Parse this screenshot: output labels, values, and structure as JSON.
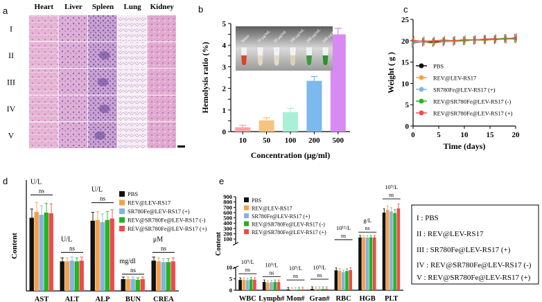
{
  "figure": {
    "panel_labels": {
      "a": "a",
      "b": "b",
      "c": "c",
      "d": "d",
      "e": "e"
    }
  },
  "panel_a": {
    "organs": [
      "Heart",
      "Liver",
      "Spleen",
      "Lung",
      "Kidney"
    ],
    "groups": [
      "I",
      "II",
      "III",
      "IV",
      "V"
    ]
  },
  "legend_box": {
    "items": [
      "I  : PBS",
      "II : REV@LEV-RS17",
      "III : SR780Fe@LEV-RS17 (+)",
      "IV : REV@SR780Fe@LEV-RS17  (-)",
      "V : REV@SR780Fe@LEV-RS17 (+)"
    ]
  },
  "colors": {
    "black": "#111111",
    "orange": "#F5A04A",
    "blue": "#84B3E0",
    "green": "#23B41F",
    "red": "#EE4A4A",
    "hemo": [
      "#F9A5A5",
      "#F7C37E",
      "#A9F0D8",
      "#7DB8EE",
      "#D98AF2"
    ]
  },
  "chart_data": [
    {
      "id": "hemolysis",
      "type": "bar",
      "categories": [
        "10",
        "50",
        "100",
        "200",
        "500"
      ],
      "values": [
        0.2,
        0.52,
        0.9,
        2.35,
        4.5
      ],
      "errors": [
        0.1,
        0.12,
        0.18,
        0.2,
        0.28
      ],
      "xlabel": "Concentration (μg/ml)",
      "ylabel": "Hemolysis ratio (%)",
      "ylim": [
        0,
        5
      ],
      "yticks": [
        "0",
        "0.5",
        "1",
        "1.5",
        "2",
        "2.5",
        "3",
        "3.5",
        "4",
        "4.5",
        "5"
      ],
      "inset_labels": [
        "Water",
        "10 μg/mL",
        "50 μg/mL",
        "100 μg/mL",
        "200 μg/mL",
        "500 μg/mL"
      ]
    },
    {
      "id": "weight",
      "type": "line",
      "x": [
        0,
        2,
        4,
        6,
        8,
        10,
        12,
        14,
        16,
        18,
        20
      ],
      "xlabel": "Time (days)",
      "ylabel": "Weight ( g )",
      "xlim": [
        0,
        20
      ],
      "ylim": [
        0,
        25
      ],
      "xticks": [
        "0",
        "5",
        "10",
        "15",
        "20"
      ],
      "yticks": [
        "0",
        "5",
        "10",
        "15",
        "20",
        "25"
      ],
      "series": [
        {
          "name": "PBS",
          "values": [
            19.5,
            19.7,
            19.6,
            19.8,
            19.9,
            20.0,
            20.1,
            20.3,
            20.2,
            20.5,
            20.6
          ]
        },
        {
          "name": "REV@LEV-RS17",
          "values": [
            19.8,
            19.6,
            19.4,
            19.7,
            19.8,
            19.9,
            20.1,
            20.0,
            20.3,
            20.4,
            20.3
          ]
        },
        {
          "name": "SR780Fe@LEV-RS17 (+)",
          "values": [
            19.6,
            19.7,
            19.9,
            19.8,
            20.0,
            20.2,
            20.1,
            20.3,
            20.4,
            20.5,
            20.7
          ]
        },
        {
          "name": "REV@SR780Fe@LEV-RS17 (-)",
          "values": [
            19.9,
            20.0,
            19.8,
            20.0,
            20.1,
            20.0,
            20.3,
            20.2,
            20.4,
            20.6,
            20.4
          ]
        },
        {
          "name": "REV@SR780Fe@LEV-RS17 (+)",
          "values": [
            20.1,
            19.9,
            20.0,
            20.2,
            20.0,
            20.3,
            20.2,
            20.4,
            20.5,
            20.3,
            20.8
          ]
        }
      ],
      "error": 1.0
    },
    {
      "id": "biochem",
      "type": "bar",
      "categories": [
        "AST",
        "ALT",
        "ALP",
        "BUN",
        "CREA"
      ],
      "unit_labels": [
        "U/L",
        "U/L",
        "U/L",
        "mg/dl",
        "μM"
      ],
      "ns_label": "ns",
      "ylabel": "Content",
      "ylim": [
        0,
        150
      ],
      "series": [
        {
          "name": "PBS",
          "values": [
            99,
            40,
            95,
            16,
            41
          ]
        },
        {
          "name": "REV@LEV-RS17",
          "values": [
            107,
            40,
            96,
            16,
            40
          ]
        },
        {
          "name": "SR780Fe@LEV-RS17 (+)",
          "values": [
            103,
            41,
            93,
            16,
            39
          ]
        },
        {
          "name": "REV@SR780Fe@LEV-RS17 (-)",
          "values": [
            106,
            40,
            96,
            15,
            39
          ]
        },
        {
          "name": "REV@SR780Fe@LEV-RS17 (+)",
          "values": [
            105,
            41,
            98,
            16,
            40
          ]
        }
      ]
    },
    {
      "id": "blood",
      "type": "bar",
      "categories": [
        "WBC",
        "Lymph#",
        "Mon#",
        "Gran#",
        "RBC",
        "HGB",
        "PLT"
      ],
      "unit_labels": [
        "10⁹/L",
        "10⁹/L",
        "10⁹/L",
        "10⁹/L",
        "10¹²/L",
        "g/L",
        "10⁹/L"
      ],
      "ns_label": "ns",
      "ylabel": "Content",
      "ylim_upper": [
        10,
        900
      ],
      "ylim_lower": [
        0,
        10
      ],
      "yticks_upper": [
        "100",
        "200",
        "300",
        "400",
        "500",
        "600",
        "700",
        "800",
        "900"
      ],
      "yticks_lower": [
        "0",
        "5",
        "10"
      ],
      "series": [
        {
          "name": "PBS",
          "values": [
            4.5,
            3.6,
            0.25,
            0.6,
            8.7,
            130,
            600
          ]
        },
        {
          "name": "REV@LEV-RS17",
          "values": [
            4.6,
            3.3,
            0.25,
            0.6,
            8.5,
            131,
            650
          ]
        },
        {
          "name": "SR780Fe@LEV-RS17 (+)",
          "values": [
            4.4,
            3.5,
            0.25,
            0.6,
            7.9,
            128,
            620
          ]
        },
        {
          "name": "REV@SR780Fe@LEV-RS17 (-)",
          "values": [
            4.7,
            3.6,
            0.25,
            0.6,
            8.4,
            132,
            590
          ]
        },
        {
          "name": "REV@SR780Fe@LEV-RS17 (+)",
          "values": [
            4.6,
            3.6,
            0.25,
            0.6,
            8.8,
            130,
            680
          ]
        }
      ]
    }
  ]
}
